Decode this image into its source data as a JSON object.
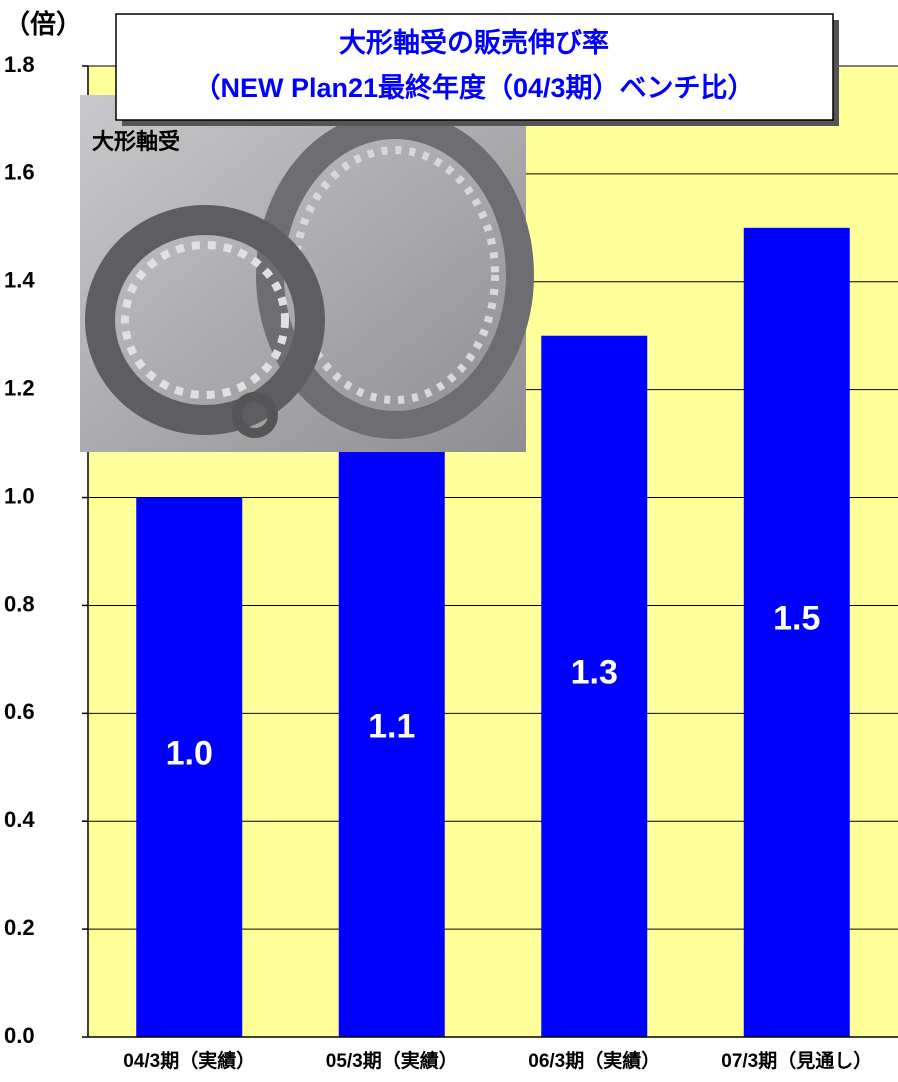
{
  "chart_data": {
    "type": "bar",
    "title": "大形軸受の販売伸び率",
    "subtitle": "（NEW Plan21最終年度（04/3期）ベンチ比）",
    "y_label": "（倍）",
    "annotation": "大形軸受",
    "categories": [
      "04/3期（実績）",
      "05/3期（実績）",
      "06/3期（実績）",
      "07/3期（見通し）"
    ],
    "values": [
      1.0,
      1.1,
      1.3,
      1.5
    ],
    "value_labels": [
      "1.0",
      "1.1",
      "1.3",
      "1.5"
    ],
    "color": "#0000ff",
    "ylim": [
      0,
      1.8
    ],
    "yticks": [
      {
        "value": 0,
        "label": "0.0"
      },
      0.2,
      0.4,
      0.6,
      0.8,
      {
        "value": 1,
        "label": "1.0"
      },
      1.2,
      1.4,
      1.6,
      1.8
    ],
    "grid": true
  }
}
